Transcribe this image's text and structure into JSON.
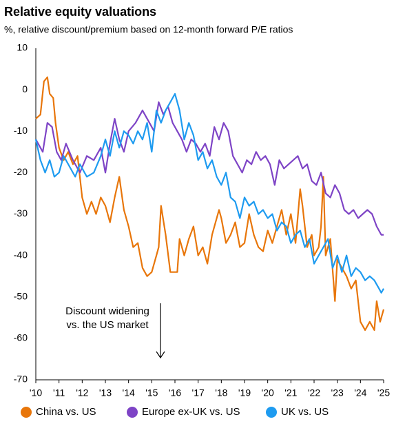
{
  "chart_data": {
    "type": "line",
    "title": "Relative equity valuations",
    "subtitle": "%, relative discount/premium based on 12-month forward P/E ratios",
    "annotation": [
      "Discount widening",
      "vs. the US market"
    ],
    "xlim": [
      2010,
      2025
    ],
    "xticks": [
      {
        "value": 2010,
        "label": "'10"
      },
      {
        "value": 2011,
        "label": "'11"
      },
      {
        "value": 2012,
        "label": "'12"
      },
      {
        "value": 2013,
        "label": "'13"
      },
      {
        "value": 2014,
        "label": "'14"
      },
      {
        "value": 2015,
        "label": "'15"
      },
      {
        "value": 2016,
        "label": "'16"
      },
      {
        "value": 2017,
        "label": "'17"
      },
      {
        "value": 2018,
        "label": "'18"
      },
      {
        "value": 2019,
        "label": "'19"
      },
      {
        "value": 2020,
        "label": "'20"
      },
      {
        "value": 2021,
        "label": "'21"
      },
      {
        "value": 2022,
        "label": "'22"
      },
      {
        "value": 2023,
        "label": "'23"
      },
      {
        "value": 2024,
        "label": "'24"
      },
      {
        "value": 2025,
        "label": "'25"
      }
    ],
    "ylim": [
      -70,
      10
    ],
    "yticks": [
      10,
      0,
      -10,
      -20,
      -30,
      -40,
      -50,
      -60,
      -70
    ],
    "grid": false,
    "legend": "bottom",
    "series": [
      {
        "name": "China vs. US",
        "color": "#E8760A",
        "x": [
          2010.0,
          2010.2,
          2010.35,
          2010.5,
          2010.6,
          2010.75,
          2010.85,
          2011.0,
          2011.2,
          2011.4,
          2011.6,
          2011.8,
          2012.0,
          2012.2,
          2012.4,
          2012.6,
          2012.8,
          2013.0,
          2013.2,
          2013.4,
          2013.6,
          2013.8,
          2014.0,
          2014.2,
          2014.4,
          2014.6,
          2014.8,
          2015.0,
          2015.2,
          2015.3,
          2015.4,
          2015.6,
          2015.8,
          2016.1,
          2016.2,
          2016.4,
          2016.6,
          2016.8,
          2017.0,
          2017.2,
          2017.4,
          2017.6,
          2017.9,
          2018.0,
          2018.2,
          2018.4,
          2018.6,
          2018.8,
          2019.0,
          2019.2,
          2019.4,
          2019.6,
          2019.8,
          2020.0,
          2020.2,
          2020.4,
          2020.6,
          2020.8,
          2021.0,
          2021.2,
          2021.4,
          2021.5,
          2021.7,
          2021.9,
          2022.0,
          2022.2,
          2022.3,
          2022.4,
          2022.5,
          2022.7,
          2022.9,
          2023.0,
          2023.2,
          2023.4,
          2023.6,
          2023.8,
          2024.0,
          2024.2,
          2024.4,
          2024.6,
          2024.7,
          2024.85,
          2025.0
        ],
        "values": [
          -7,
          -6,
          2,
          3,
          -1,
          -2,
          -8,
          -14,
          -17,
          -15,
          -18,
          -16,
          -26,
          -30,
          -27,
          -30,
          -26,
          -28,
          -32,
          -26,
          -21,
          -29,
          -33,
          -38,
          -37,
          -43,
          -45,
          -44,
          -40,
          -38,
          -28,
          -35,
          -44,
          -44,
          -36,
          -40,
          -36,
          -33,
          -40,
          -38,
          -42,
          -35,
          -29,
          -31,
          -37,
          -35,
          -32,
          -38,
          -37,
          -30,
          -35,
          -38,
          -39,
          -34,
          -37,
          -33,
          -29,
          -35,
          -30,
          -37,
          -24,
          -28,
          -38,
          -35,
          -40,
          -38,
          -33,
          -21,
          -40,
          -36,
          -51,
          -41,
          -43,
          -45,
          -48,
          -46,
          -56,
          -58,
          -56,
          -58,
          -51,
          -56,
          -53
        ]
      },
      {
        "name": "Europe ex-UK vs. US",
        "color": "#7E44C6",
        "x": [
          2010.0,
          2010.3,
          2010.5,
          2010.7,
          2010.9,
          2011.1,
          2011.3,
          2011.6,
          2011.9,
          2012.2,
          2012.5,
          2012.8,
          2013.0,
          2013.2,
          2013.4,
          2013.6,
          2013.8,
          2014.0,
          2014.3,
          2014.6,
          2014.9,
          2015.1,
          2015.3,
          2015.5,
          2015.7,
          2015.9,
          2016.1,
          2016.3,
          2016.5,
          2016.7,
          2016.9,
          2017.1,
          2017.3,
          2017.5,
          2017.7,
          2017.9,
          2018.1,
          2018.3,
          2018.5,
          2018.7,
          2018.9,
          2019.1,
          2019.3,
          2019.5,
          2019.7,
          2019.9,
          2020.1,
          2020.3,
          2020.5,
          2020.7,
          2020.9,
          2021.1,
          2021.3,
          2021.5,
          2021.7,
          2021.9,
          2022.1,
          2022.3,
          2022.5,
          2022.7,
          2022.9,
          2023.1,
          2023.3,
          2023.5,
          2023.7,
          2023.9,
          2024.1,
          2024.3,
          2024.5,
          2024.7,
          2024.9,
          2025.0
        ],
        "values": [
          -12,
          -15,
          -8,
          -9,
          -15,
          -17,
          -13,
          -17,
          -20,
          -16,
          -17,
          -14,
          -20,
          -13,
          -7,
          -12,
          -15,
          -10,
          -8,
          -5,
          -8,
          -10,
          -3,
          -6,
          -4,
          -8,
          -10,
          -12,
          -15,
          -12,
          -13,
          -15,
          -13,
          -16,
          -9,
          -12,
          -8,
          -10,
          -16,
          -18,
          -20,
          -17,
          -18,
          -15,
          -17,
          -16,
          -18,
          -23,
          -17,
          -19,
          -18,
          -17,
          -16,
          -19,
          -18,
          -22,
          -23,
          -20,
          -25,
          -26,
          -23,
          -25,
          -29,
          -30,
          -29,
          -31,
          -30,
          -29,
          -30,
          -33,
          -35,
          -35
        ]
      },
      {
        "name": "UK vs. US",
        "color": "#1E9BF0",
        "x": [
          2010.0,
          2010.2,
          2010.4,
          2010.6,
          2010.8,
          2011.0,
          2011.2,
          2011.5,
          2011.7,
          2011.9,
          2012.2,
          2012.5,
          2012.8,
          2013.0,
          2013.2,
          2013.4,
          2013.6,
          2013.8,
          2014.0,
          2014.2,
          2014.4,
          2014.6,
          2014.8,
          2015.0,
          2015.2,
          2015.4,
          2015.6,
          2015.8,
          2016.0,
          2016.2,
          2016.4,
          2016.6,
          2016.8,
          2017.0,
          2017.2,
          2017.4,
          2017.6,
          2017.8,
          2018.0,
          2018.2,
          2018.4,
          2018.6,
          2018.8,
          2019.0,
          2019.2,
          2019.4,
          2019.6,
          2019.8,
          2020.0,
          2020.2,
          2020.4,
          2020.6,
          2020.8,
          2021.0,
          2021.2,
          2021.4,
          2021.6,
          2021.8,
          2022.0,
          2022.2,
          2022.4,
          2022.6,
          2022.8,
          2023.0,
          2023.2,
          2023.4,
          2023.6,
          2023.8,
          2024.0,
          2024.2,
          2024.4,
          2024.6,
          2024.8,
          2024.9,
          2025.0
        ],
        "values": [
          -12,
          -17,
          -20,
          -17,
          -21,
          -20,
          -16,
          -19,
          -21,
          -18,
          -21,
          -20,
          -16,
          -12,
          -16,
          -10,
          -14,
          -10,
          -11,
          -13,
          -10,
          -12,
          -8,
          -15,
          -5,
          -8,
          -5,
          -3,
          -1,
          -5,
          -12,
          -8,
          -11,
          -17,
          -15,
          -19,
          -17,
          -21,
          -23,
          -20,
          -26,
          -27,
          -31,
          -26,
          -28,
          -27,
          -30,
          -29,
          -31,
          -30,
          -34,
          -32,
          -33,
          -37,
          -35,
          -34,
          -38,
          -36,
          -42,
          -40,
          -38,
          -36,
          -43,
          -40,
          -44,
          -40,
          -45,
          -43,
          -44,
          -46,
          -45,
          -46,
          -48,
          -49,
          -48
        ]
      }
    ]
  }
}
